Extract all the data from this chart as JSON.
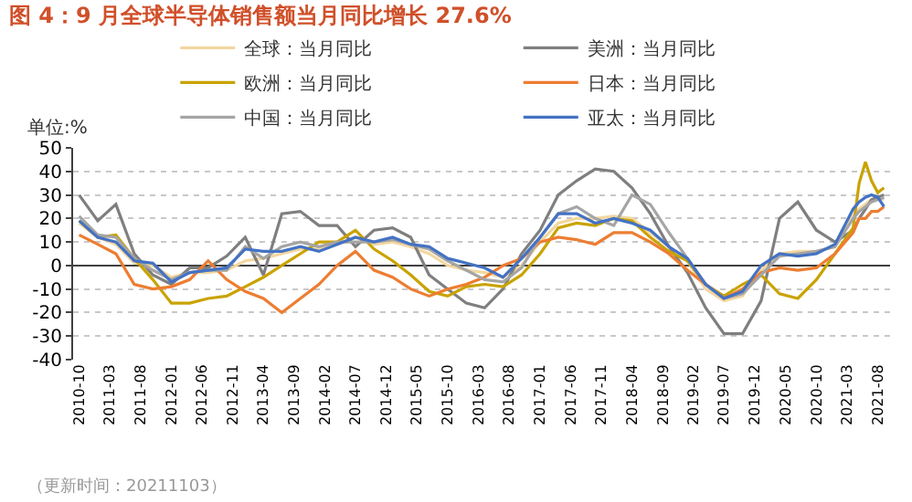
{
  "chart_data": {
    "type": "line",
    "title": "图 4：9 月全球半导体销售额当月同比增长 27.6%",
    "ylabel": "单位:%",
    "annotations": [
      "（更新时间：20211103）"
    ],
    "x": [
      "2010-10",
      "2011-01",
      "2011-04",
      "2011-07",
      "2011-10",
      "2012-01",
      "2012-04",
      "2012-07",
      "2012-10",
      "2013-01",
      "2013-04",
      "2013-07",
      "2013-10",
      "2014-01",
      "2014-04",
      "2014-07",
      "2014-10",
      "2015-01",
      "2015-04",
      "2015-07",
      "2015-10",
      "2016-01",
      "2016-04",
      "2016-07",
      "2016-10",
      "2017-01",
      "2017-04",
      "2017-07",
      "2017-10",
      "2018-01",
      "2018-04",
      "2018-07",
      "2018-10",
      "2019-01",
      "2019-04",
      "2019-07",
      "2019-10",
      "2020-01",
      "2020-04",
      "2020-07",
      "2020-10",
      "2021-01",
      "2021-04",
      "2021-05",
      "2021-06",
      "2021-07",
      "2021-08",
      "2021-09"
    ],
    "series": [
      {
        "name": "全球：当月同比",
        "color": "#f2d7a0",
        "values": [
          18,
          12,
          9,
          1,
          0,
          -5,
          -3,
          -3,
          -2,
          2,
          3,
          5,
          7,
          7,
          9,
          12,
          9,
          10,
          8,
          5,
          0,
          -2,
          -3,
          -5,
          0,
          10,
          18,
          20,
          20,
          21,
          20,
          14,
          8,
          2,
          -10,
          -15,
          -13,
          -2,
          5,
          6,
          6,
          8,
          21,
          24,
          26,
          28,
          29,
          28
        ]
      },
      {
        "name": "美洲：当月同比",
        "color": "#7f7f7f",
        "values": [
          30,
          19,
          26,
          5,
          -4,
          -8,
          -1,
          -1,
          4,
          12,
          -4,
          22,
          23,
          17,
          17,
          8,
          15,
          16,
          12,
          -4,
          -10,
          -16,
          -18,
          -10,
          5,
          15,
          30,
          36,
          41,
          40,
          33,
          22,
          8,
          -3,
          -18,
          -29,
          -29,
          -15,
          20,
          27,
          15,
          10,
          15,
          20,
          24,
          28,
          29,
          30
        ]
      },
      {
        "name": "欧洲：当月同比",
        "color": "#c9a300",
        "values": [
          19,
          12,
          13,
          3,
          -6,
          -16,
          -16,
          -14,
          -13,
          -9,
          -5,
          0,
          5,
          10,
          10,
          15,
          7,
          2,
          -4,
          -11,
          -13,
          -9,
          -8,
          -9,
          -4,
          5,
          16,
          18,
          17,
          20,
          19,
          12,
          6,
          2,
          -8,
          -13,
          -8,
          -4,
          -12,
          -14,
          -6,
          5,
          16,
          35,
          44,
          36,
          31,
          33
        ]
      },
      {
        "name": "日本：当月同比",
        "color": "#ed7d31",
        "values": [
          13,
          9,
          5,
          -8,
          -10,
          -9,
          -6,
          2,
          -6,
          -11,
          -14,
          -20,
          -14,
          -8,
          0,
          6,
          -2,
          -5,
          -10,
          -13,
          -10,
          -8,
          -5,
          0,
          3,
          10,
          12,
          11,
          9,
          14,
          14,
          10,
          5,
          -2,
          -8,
          -14,
          -10,
          -3,
          -1,
          -2,
          -1,
          5,
          14,
          20,
          20,
          23,
          23,
          25
        ]
      },
      {
        "name": "中国：当月同比",
        "color": "#a5a5a5",
        "values": [
          21,
          13,
          12,
          3,
          -2,
          -6,
          -3,
          -2,
          -2,
          8,
          3,
          8,
          10,
          8,
          10,
          10,
          10,
          11,
          9,
          7,
          2,
          -2,
          -6,
          -7,
          -1,
          12,
          22,
          25,
          20,
          17,
          30,
          26,
          14,
          3,
          -8,
          -14,
          -12,
          -4,
          4,
          5,
          6,
          8,
          20,
          23,
          25,
          27,
          28,
          29
        ]
      },
      {
        "name": "亚太：当月同比",
        "color": "#4472c4",
        "values": [
          19,
          12,
          10,
          2,
          1,
          -7,
          -3,
          -2,
          -1,
          7,
          6,
          6,
          8,
          6,
          9,
          12,
          10,
          12,
          9,
          8,
          3,
          1,
          -1,
          -5,
          3,
          12,
          22,
          22,
          18,
          20,
          18,
          15,
          8,
          3,
          -8,
          -14,
          -11,
          0,
          5,
          4,
          5,
          9,
          24,
          27,
          29,
          30,
          29,
          25
        ]
      }
    ],
    "xlim": [
      "2010-09",
      "2021-10"
    ],
    "xticks": [
      "2010-10",
      "2011-03",
      "2011-08",
      "2012-01",
      "2012-06",
      "2012-11",
      "2013-04",
      "2013-09",
      "2014-02",
      "2014-07",
      "2014-12",
      "2015-05",
      "2015-10",
      "2016-03",
      "2016-08",
      "2017-01",
      "2017-06",
      "2017-11",
      "2018-04",
      "2018-09",
      "2019-02",
      "2019-07",
      "2019-12",
      "2020-05",
      "2020-10",
      "2021-03",
      "2021-08"
    ],
    "ylim": [
      -40,
      50
    ],
    "yticks": [
      -40,
      -30,
      -20,
      -10,
      0,
      10,
      20,
      30,
      40,
      50
    ],
    "grid": "y",
    "legend": "top",
    "marker": "none",
    "line_style": "solid"
  }
}
